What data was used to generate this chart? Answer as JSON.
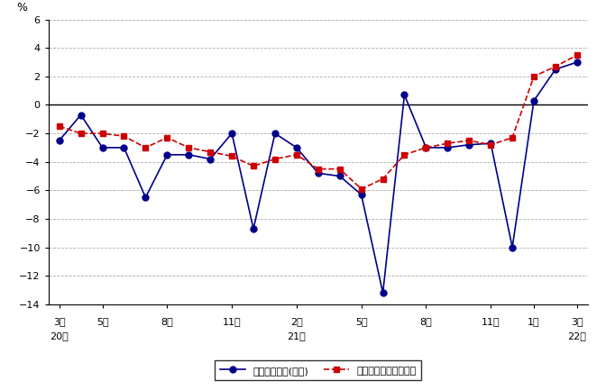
{
  "ylabel": "%",
  "xlim": [
    -0.5,
    24.5
  ],
  "ylim": [
    -14,
    6
  ],
  "yticks": [
    -14,
    -12,
    -10,
    -8,
    -6,
    -4,
    -2,
    0,
    2,
    4,
    6
  ],
  "xtick_positions": [
    0,
    2,
    5,
    8,
    11,
    14,
    17,
    20,
    22,
    24
  ],
  "xtick_labels_line1": [
    "20年",
    "",
    "",
    "",
    "21年",
    "",
    "",
    "",
    "",
    "22年"
  ],
  "xtick_labels_line2": [
    "3月",
    "5月",
    "8月",
    "11月",
    "2月",
    "5月",
    "8月",
    "11月",
    "1月",
    "3月"
  ],
  "series1_label": "現金給与総額(名目)",
  "series1_color": "#00008B",
  "series1_marker": "o",
  "series1_linestyle": "-",
  "series1_x": [
    0,
    1,
    2,
    3,
    4,
    5,
    6,
    7,
    8,
    9,
    10,
    11,
    12,
    13,
    14,
    15,
    16,
    17,
    18,
    19,
    20,
    21,
    22,
    23,
    24
  ],
  "series1_y": [
    -2.5,
    -0.7,
    -3.0,
    -3.0,
    -6.5,
    -3.5,
    -3.5,
    -3.8,
    -2.0,
    -8.7,
    -2.0,
    -3.0,
    -4.8,
    -5.0,
    -6.3,
    -13.2,
    0.7,
    -3.0,
    -3.0,
    -2.8,
    -2.7,
    -10.0,
    0.3,
    2.5,
    3.0
  ],
  "series2_label": "きまって支給する給与",
  "series2_color": "#CC0000",
  "series2_marker": "s",
  "series2_linestyle": "--",
  "series2_x": [
    0,
    1,
    2,
    3,
    4,
    5,
    6,
    7,
    8,
    9,
    10,
    11,
    12,
    13,
    14,
    15,
    16,
    17,
    18,
    19,
    20,
    21,
    22,
    23,
    24
  ],
  "series2_y": [
    -1.5,
    -2.0,
    -2.0,
    -2.2,
    -3.0,
    -2.3,
    -3.0,
    -3.3,
    -3.6,
    -4.3,
    -3.8,
    -3.5,
    -4.5,
    -4.5,
    -5.9,
    -5.2,
    -3.5,
    -3.0,
    -2.7,
    -2.5,
    -2.8,
    -2.3,
    2.0,
    2.7,
    3.5
  ],
  "grid_color": "#999999",
  "background_color": "#ffffff"
}
